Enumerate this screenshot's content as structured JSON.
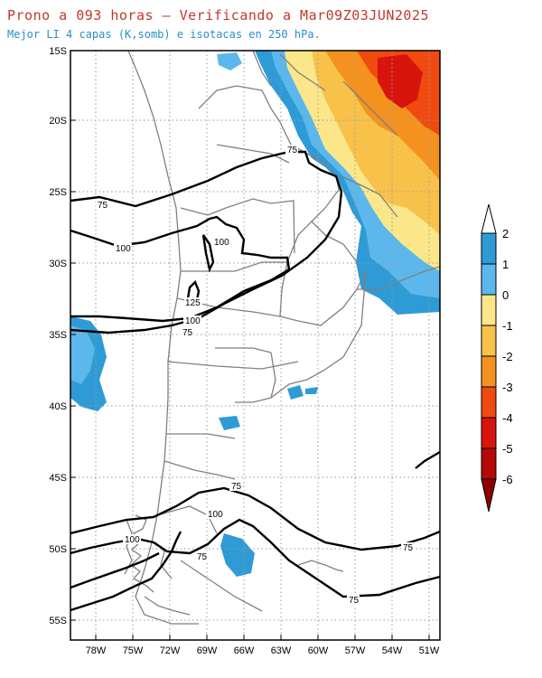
{
  "header": {
    "title": "Prono a 093 horas — Verificando a Mar09Z03JUN2025",
    "subtitle": "Mejor LI 4 capas (K,somb) e isotacas en 250 hPa."
  },
  "axes": {
    "lat_labels": [
      "15S",
      "20S",
      "25S",
      "30S",
      "35S",
      "40S",
      "45S",
      "50S",
      "55S"
    ],
    "lon_labels": [
      "78W",
      "75W",
      "72W",
      "69W",
      "66W",
      "63W",
      "60W",
      "57W",
      "54W",
      "51W"
    ]
  },
  "colorbar": {
    "labels": [
      "2",
      "1",
      "0",
      "-1",
      "-2",
      "-3",
      "-4",
      "-5",
      "-6"
    ],
    "colors": [
      "#2f9bd6",
      "#5cb8ec",
      "#fbe78a",
      "#f8c24a",
      "#f5911f",
      "#ef4a10",
      "#d8150d",
      "#b50808"
    ],
    "top_arrow_color": "#ffffff",
    "bottom_arrow_color": "#8e0000"
  },
  "contour_labels": {
    "isotach_75_a": "75",
    "isotach_75_b": "75",
    "isotach_75_c": "75",
    "isotach_75_d": "75",
    "isotach_75_e": "75",
    "isotach_75_f": "75",
    "isotach_75_g": "75",
    "isotach_100_a": "100",
    "isotach_100_b": "100",
    "isotach_100_c": "100",
    "isotach_100_d": "100",
    "isotach_100_e": "100",
    "isotach_125": "125"
  }
}
